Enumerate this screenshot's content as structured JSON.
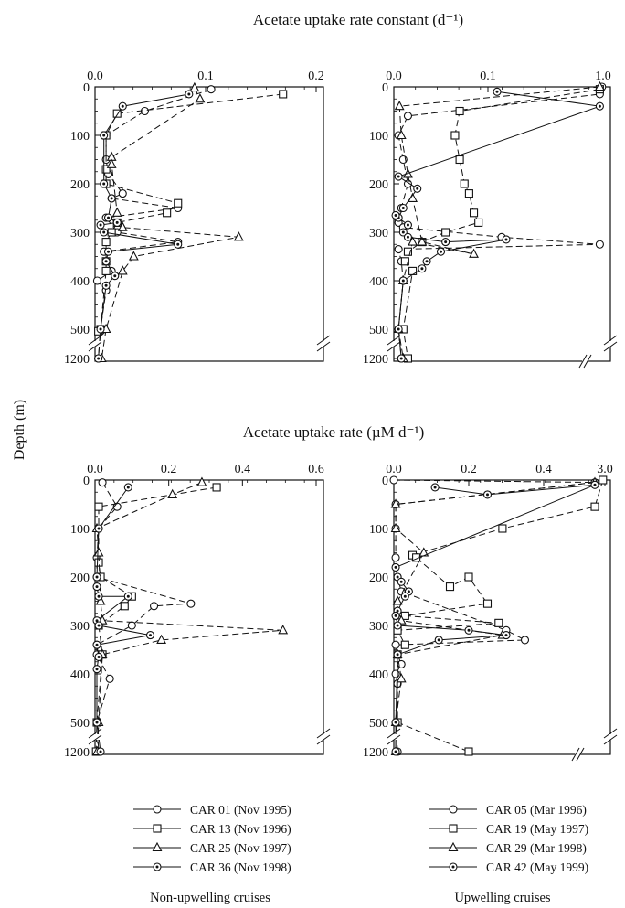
{
  "figure": {
    "y_axis_label": "Depth (m)",
    "title_top": "Acetate uptake rate constant (d⁻¹)",
    "title_bottom": "Acetate uptake rate (µM d⁻¹)",
    "group_left": "Non-upwelling cruises",
    "group_right": "Upwelling cruises"
  },
  "legend_left": [
    {
      "label": "CAR 01 (Nov 1995)",
      "marker": "circle"
    },
    {
      "label": "CAR 13 (Nov 1996)",
      "marker": "square"
    },
    {
      "label": "CAR 25 (Nov 1997)",
      "marker": "triangle"
    },
    {
      "label": "CAR 36 (Nov 1998)",
      "marker": "dotcircle"
    }
  ],
  "legend_right": [
    {
      "label": "CAR 05 (Mar 1996)",
      "marker": "circle"
    },
    {
      "label": "CAR 19 (May 1997)",
      "marker": "square"
    },
    {
      "label": "CAR 29 (Mar 1998)",
      "marker": "triangle"
    },
    {
      "label": "CAR 42 (May 1999)",
      "marker": "dotcircle"
    }
  ],
  "chart_data": [
    {
      "type": "line",
      "panel": "top-left",
      "x_ticks": [
        "0.0",
        "0.1",
        "0.2"
      ],
      "xlim": [
        0,
        0.2
      ],
      "x_axis_position": "top",
      "y_ticks": [
        "0",
        "100",
        "200",
        "300",
        "400",
        "500",
        "1200"
      ],
      "y_axis": "depth, inverted, broken between 500 and 1200",
      "series": [
        {
          "name": "CAR 01 (Nov 1995)",
          "line": "dashed",
          "marker": "circle",
          "x": [
            0.105,
            0.045,
            0.01,
            0.01,
            0.012,
            0.025,
            0.015,
            0.075,
            0.01,
            0.02,
            0.075,
            0.008,
            0.01,
            0.015,
            0.002,
            0.01,
            0.005,
            0.005,
            0.003
          ],
          "y": [
            5,
            50,
            100,
            150,
            180,
            220,
            230,
            250,
            270,
            300,
            320,
            340,
            360,
            380,
            400,
            420,
            500,
            550,
            1200
          ]
        },
        {
          "name": "CAR 13 (Nov 1996)",
          "line": "dashed",
          "marker": "square",
          "x": [
            0.17,
            0.02,
            0.01,
            0.01,
            0.01,
            0.075,
            0.065,
            0.02,
            0.015,
            0.01,
            0.01,
            0.01,
            0.005,
            0.003
          ],
          "y": [
            15,
            55,
            100,
            170,
            200,
            240,
            260,
            280,
            300,
            320,
            360,
            380,
            500,
            550
          ]
        },
        {
          "name": "CAR 25 (Nov 1997)",
          "line": "dashed",
          "marker": "triangle",
          "x": [
            0.09,
            0.095,
            0.015,
            0.015,
            0.02,
            0.025,
            0.13,
            0.035,
            0.025,
            0.01,
            0.006
          ],
          "y": [
            2,
            25,
            145,
            160,
            260,
            290,
            310,
            350,
            380,
            500,
            1200
          ]
        },
        {
          "name": "CAR 36 (Nov 1998)",
          "line": "solid",
          "marker": "dotcircle",
          "x": [
            0.085,
            0.025,
            0.008,
            0.008,
            0.015,
            0.012,
            0.02,
            0.005,
            0.008,
            0.075,
            0.012,
            0.01,
            0.018,
            0.01,
            0.005,
            0.003
          ],
          "y": [
            15,
            40,
            100,
            200,
            230,
            270,
            280,
            285,
            300,
            325,
            340,
            360,
            390,
            410,
            500,
            1200
          ]
        }
      ]
    },
    {
      "type": "line",
      "panel": "top-right",
      "x_ticks": [
        "0.0",
        "0.1",
        "1.0"
      ],
      "xlim": [
        0,
        1.0
      ],
      "x_axis_position": "top",
      "x_axis": "broken between 0.1 and 1.0",
      "y_ticks": [
        "0",
        "100",
        "200",
        "300",
        "400",
        "500",
        "1200"
      ],
      "y_axis": "depth, inverted, broken between 500 and 1200",
      "series": [
        {
          "name": "CAR 05 (Mar 1996)",
          "line": "dashed",
          "marker": "circle",
          "x": [
            0.99,
            0.97,
            0.015,
            0.005,
            0.01,
            0.015,
            0.008,
            0.005,
            0.01,
            0.115,
            0.97,
            0.005,
            0.008,
            0.01,
            0.005,
            0.008
          ],
          "y": [
            0,
            15,
            60,
            100,
            150,
            200,
            250,
            280,
            290,
            310,
            325,
            335,
            360,
            400,
            500,
            1200
          ]
        },
        {
          "name": "CAR 19 (May 1997)",
          "line": "dashed",
          "marker": "square",
          "x": [
            0.97,
            0.07,
            0.065,
            0.07,
            0.075,
            0.08,
            0.085,
            0.09,
            0.055,
            0.03,
            0.015,
            0.012,
            0.02,
            0.01,
            0.015
          ],
          "y": [
            5,
            50,
            100,
            150,
            200,
            220,
            260,
            280,
            300,
            320,
            340,
            360,
            380,
            500,
            1200
          ]
        },
        {
          "name": "CAR 29 (Mar 1998)",
          "line": "dashed",
          "marker": "triangle",
          "x": [
            0.97,
            0.006,
            0.008,
            0.015,
            0.02,
            0.03,
            0.085,
            0.02,
            0.01,
            0.005,
            0.01
          ],
          "y": [
            0,
            40,
            100,
            180,
            230,
            320,
            345,
            320,
            400,
            500,
            1200
          ]
        },
        {
          "name": "CAR 42 (May 1999)",
          "line": "solid",
          "marker": "dotcircle",
          "x": [
            0.11,
            0.97,
            0.005,
            0.025,
            0.01,
            0.005,
            0.002,
            0.015,
            0.01,
            0.015,
            0.055,
            0.12,
            0.05,
            0.035,
            0.03,
            0.01,
            0.005,
            0.008
          ],
          "y": [
            10,
            40,
            185,
            210,
            250,
            270,
            265,
            285,
            300,
            310,
            320,
            315,
            340,
            360,
            375,
            400,
            500,
            1200
          ]
        }
      ]
    },
    {
      "type": "line",
      "panel": "bottom-left",
      "x_ticks": [
        "0.0",
        "0.2",
        "0.4",
        "0.6"
      ],
      "xlim": [
        0,
        0.6
      ],
      "x_axis_position": "top",
      "y_ticks": [
        "0",
        "100",
        "200",
        "300",
        "400",
        "500",
        "1200"
      ],
      "y_axis": "depth, inverted, broken between 500 and 1200",
      "series": [
        {
          "name": "CAR 01 (Nov 1995)",
          "line": "dashed",
          "marker": "circle",
          "x": [
            0.02,
            0.06,
            0.01,
            0.005,
            0.005,
            0.26,
            0.16,
            0.1,
            0.005,
            0.005,
            0.04,
            0.005,
            0.01,
            0.005
          ],
          "y": [
            5,
            55,
            100,
            160,
            200,
            255,
            260,
            300,
            340,
            360,
            410,
            500,
            1200,
            1200
          ]
        },
        {
          "name": "CAR 13 (Nov 1996)",
          "line": "dashed",
          "marker": "square",
          "x": [
            0.33,
            0.01,
            0.01,
            0.015,
            0.1,
            0.08,
            0.01,
            0.02,
            0.005,
            0.003
          ],
          "y": [
            15,
            55,
            170,
            200,
            240,
            260,
            300,
            360,
            500,
            1200
          ]
        },
        {
          "name": "CAR 25 (Nov 1997)",
          "line": "dashed",
          "marker": "triangle",
          "x": [
            0.29,
            0.21,
            0.005,
            0.01,
            0.015,
            0.02,
            0.51,
            0.18,
            0.02,
            0.01,
            0.006
          ],
          "y": [
            5,
            30,
            100,
            150,
            250,
            290,
            310,
            330,
            360,
            500,
            1200
          ]
        },
        {
          "name": "CAR 36 (Nov 1998)",
          "line": "solid",
          "marker": "dotcircle",
          "x": [
            0.09,
            0.01,
            0.005,
            0.005,
            0.01,
            0.09,
            0.005,
            0.01,
            0.15,
            0.005,
            0.01,
            0.005,
            0.005,
            0.015
          ],
          "y": [
            15,
            100,
            200,
            220,
            240,
            240,
            290,
            300,
            320,
            340,
            365,
            390,
            500,
            1210
          ]
        }
      ]
    },
    {
      "type": "line",
      "panel": "bottom-right",
      "x_ticks": [
        "0.0",
        "0.2",
        "0.4",
        "3.0"
      ],
      "xlim": [
        0,
        3.0
      ],
      "x_axis_position": "top",
      "x_axis": "broken between 0.4 and 3.0",
      "y_ticks": [
        "0",
        "100",
        "200",
        "300",
        "400",
        "500",
        "1200"
      ],
      "y_axis": "depth, inverted, broken between 500 and 1200",
      "series": [
        {
          "name": "CAR 05 (Mar 1996)",
          "line": "dashed",
          "marker": "circle",
          "x": [
            0.0,
            2.9,
            0.005,
            0.005,
            0.005,
            0.01,
            0.02,
            0.3,
            0.35,
            0.005,
            0.01,
            0.02,
            0.005,
            0.01,
            0.005,
            0.01
          ],
          "y": [
            0,
            5,
            50,
            100,
            160,
            200,
            230,
            310,
            330,
            340,
            360,
            380,
            400,
            420,
            500,
            1200
          ]
        },
        {
          "name": "CAR 19 (May 1997)",
          "line": "dashed",
          "marker": "square",
          "x": [
            2.98,
            2.9,
            0.29,
            0.05,
            0.06,
            0.15,
            0.2,
            0.25,
            0.03,
            0.28,
            0.01,
            0.03,
            0.01,
            0.01,
            0.2
          ],
          "y": [
            0,
            55,
            100,
            155,
            160,
            220,
            200,
            255,
            280,
            295,
            310,
            340,
            360,
            500,
            1210
          ]
        },
        {
          "name": "CAR 29 (Mar 1998)",
          "line": "dashed",
          "marker": "triangle",
          "x": [
            2.9,
            0.005,
            0.005,
            0.08,
            0.01,
            0.01,
            0.02,
            0.29,
            0.01,
            0.02,
            0.005,
            0.005
          ],
          "y": [
            5,
            50,
            100,
            150,
            250,
            280,
            290,
            320,
            360,
            410,
            500,
            1200
          ]
        },
        {
          "name": "CAR 42 (May 1999)",
          "line": "solid",
          "marker": "dotcircle",
          "x": [
            0.11,
            0.25,
            2.9,
            0.005,
            0.01,
            0.02,
            0.04,
            0.03,
            0.01,
            0.005,
            0.01,
            0.2,
            0.3,
            0.12,
            0.01,
            0.005,
            0.005
          ],
          "y": [
            15,
            30,
            10,
            180,
            200,
            210,
            230,
            240,
            270,
            280,
            300,
            310,
            320,
            330,
            360,
            500,
            1210
          ]
        }
      ]
    }
  ]
}
